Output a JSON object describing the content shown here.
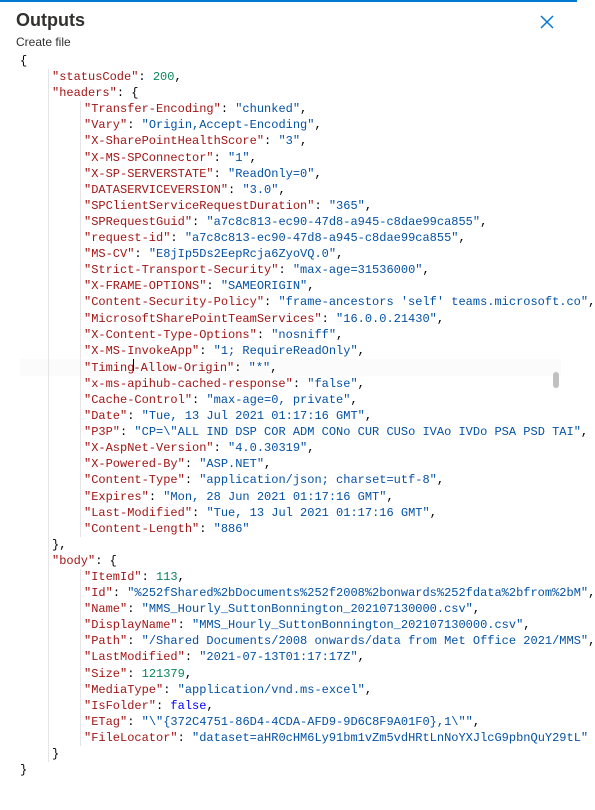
{
  "panel": {
    "title": "Outputs",
    "subtitle": "Create file",
    "close_icon": "close"
  },
  "json_root_open": "{",
  "json_root_close": "}",
  "statusCode_key": "statusCode",
  "statusCode_val": "200",
  "headers_key": "headers",
  "headers": [
    {
      "k": "Transfer-Encoding",
      "v": "chunked",
      "t": "str"
    },
    {
      "k": "Vary",
      "v": "Origin,Accept-Encoding",
      "t": "str"
    },
    {
      "k": "X-SharePointHealthScore",
      "v": "3",
      "t": "str"
    },
    {
      "k": "X-MS-SPConnector",
      "v": "1",
      "t": "str"
    },
    {
      "k": "X-SP-SERVERSTATE",
      "v": "ReadOnly=0",
      "t": "str"
    },
    {
      "k": "DATASERVICEVERSION",
      "v": "3.0",
      "t": "str"
    },
    {
      "k": "SPClientServiceRequestDuration",
      "v": "365",
      "t": "str"
    },
    {
      "k": "SPRequestGuid",
      "v": "a7c8c813-ec90-47d8-a945-c8dae99ca855",
      "t": "str"
    },
    {
      "k": "request-id",
      "v": "a7c8c813-ec90-47d8-a945-c8dae99ca855",
      "t": "str"
    },
    {
      "k": "MS-CV",
      "v": "E8jIp5Ds2EepRcja6ZyoVQ.0",
      "t": "str"
    },
    {
      "k": "Strict-Transport-Security",
      "v": "max-age=31536000",
      "t": "str"
    },
    {
      "k": "X-FRAME-OPTIONS",
      "v": "SAMEORIGIN",
      "t": "str"
    },
    {
      "k": "Content-Security-Policy",
      "v": "frame-ancestors 'self' teams.microsoft.co",
      "t": "str"
    },
    {
      "k": "MicrosoftSharePointTeamServices",
      "v": "16.0.0.21430",
      "t": "str"
    },
    {
      "k": "X-Content-Type-Options",
      "v": "nosniff",
      "t": "str"
    },
    {
      "k": "X-MS-InvokeApp",
      "v": "1; RequireReadOnly",
      "t": "str"
    },
    {
      "k": "Timing-Allow-Origin",
      "v": "*",
      "t": "str",
      "caret": true
    },
    {
      "k": "x-ms-apihub-cached-response",
      "v": "false",
      "t": "str"
    },
    {
      "k": "Cache-Control",
      "v": "max-age=0, private",
      "t": "str"
    },
    {
      "k": "Date",
      "v": "Tue, 13 Jul 2021 01:17:16 GMT",
      "t": "str"
    },
    {
      "k": "P3P",
      "v": "CP=\\\"ALL IND DSP COR ADM CONo CUR CUSo IVAo IVDo PSA PSD TAI",
      "t": "str"
    },
    {
      "k": "X-AspNet-Version",
      "v": "4.0.30319",
      "t": "str"
    },
    {
      "k": "X-Powered-By",
      "v": "ASP.NET",
      "t": "str"
    },
    {
      "k": "Content-Type",
      "v": "application/json; charset=utf-8",
      "t": "str"
    },
    {
      "k": "Expires",
      "v": "Mon, 28 Jun 2021 01:17:16 GMT",
      "t": "str"
    },
    {
      "k": "Last-Modified",
      "v": "Tue, 13 Jul 2021 01:17:16 GMT",
      "t": "str"
    },
    {
      "k": "Content-Length",
      "v": "886",
      "t": "str",
      "last": true
    }
  ],
  "body_key": "body",
  "body": [
    {
      "k": "ItemId",
      "v": "113",
      "t": "num"
    },
    {
      "k": "Id",
      "v": "%252fShared%2bDocuments%252f2008%2bonwards%252fdata%2bfrom%2bM",
      "t": "str"
    },
    {
      "k": "Name",
      "v": "MMS_Hourly_SuttonBonnington_202107130000.csv",
      "t": "str"
    },
    {
      "k": "DisplayName",
      "v": "MMS_Hourly_SuttonBonnington_202107130000.csv",
      "t": "str"
    },
    {
      "k": "Path",
      "v": "/Shared Documents/2008 onwards/data from Met Office 2021/MMS",
      "t": "str"
    },
    {
      "k": "LastModified",
      "v": "2021-07-13T01:17:17Z",
      "t": "str"
    },
    {
      "k": "Size",
      "v": "121379",
      "t": "num"
    },
    {
      "k": "MediaType",
      "v": "application/vnd.ms-excel",
      "t": "str"
    },
    {
      "k": "IsFolder",
      "v": "false",
      "t": "bool"
    },
    {
      "k": "ETag",
      "v": "\\\"{372C4751-86D4-4CDA-AFD9-9D6C8F9A01F0},1\\\"",
      "t": "str"
    },
    {
      "k": "FileLocator",
      "v": "dataset=aHR0cHM6Ly91bm1vZm5vdHRtLnNoYXJlcG9pbnQuY29tL",
      "t": "str"
    }
  ],
  "colors": {
    "key": "#a31515",
    "string": "#0451a5",
    "number": "#098658",
    "bool": "#0000ff",
    "punct": "#000000",
    "guide": "#e5e5e5",
    "accent": "#0078d4"
  }
}
